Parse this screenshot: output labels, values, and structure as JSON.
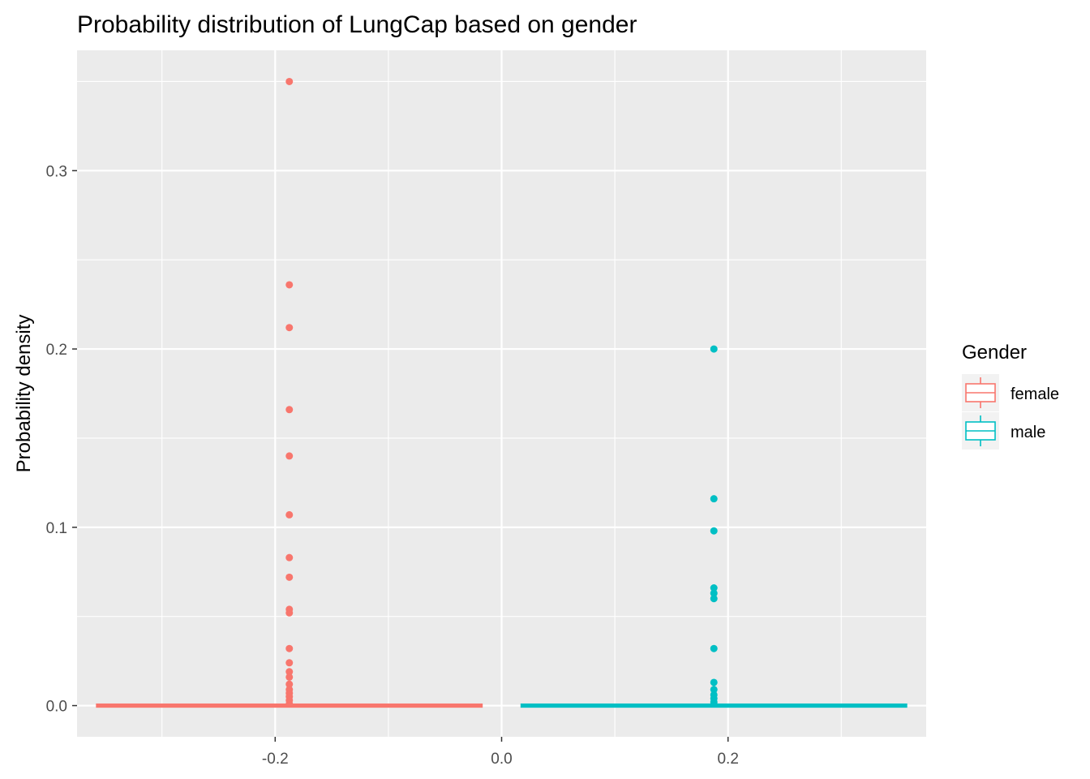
{
  "chart_data": {
    "type": "boxplot",
    "title": "Probability distribution of LungCap based on gender",
    "xlabel": "",
    "ylabel": "Probability density",
    "xlim": [
      -0.375,
      0.375
    ],
    "ylim": [
      -0.0175,
      0.3675
    ],
    "x_ticks": [
      -0.2,
      0.0,
      0.2
    ],
    "x_tick_labels": [
      "-0.2",
      "0.0",
      "0.2"
    ],
    "y_ticks": [
      0.0,
      0.1,
      0.2,
      0.3
    ],
    "y_tick_labels": [
      "0.0",
      "0.1",
      "0.2",
      "0.3"
    ],
    "grid": true,
    "panel_background": "#ebebeb",
    "legend": {
      "title": "Gender",
      "position": "right",
      "entries": [
        "female",
        "male"
      ]
    },
    "series": [
      {
        "name": "female",
        "color": "#f8766d",
        "box_center_x": -0.1875,
        "box_xmin": -0.3575,
        "box_xmax": -0.0175,
        "median": 0.0,
        "q1": 0.0,
        "q3": 0.0,
        "outliers": [
          0.35,
          0.236,
          0.212,
          0.166,
          0.14,
          0.107,
          0.083,
          0.072,
          0.054,
          0.052,
          0.032,
          0.024,
          0.019,
          0.016,
          0.012,
          0.009,
          0.007,
          0.005,
          0.003,
          0.001
        ]
      },
      {
        "name": "male",
        "color": "#00bfc4",
        "box_center_x": 0.1875,
        "box_xmin": 0.0175,
        "box_xmax": 0.3575,
        "median": 0.0,
        "q1": 0.0,
        "q3": 0.0,
        "outliers": [
          0.2,
          0.116,
          0.098,
          0.066,
          0.063,
          0.06,
          0.032,
          0.013,
          0.009,
          0.006,
          0.004,
          0.002,
          0.001
        ]
      }
    ]
  }
}
